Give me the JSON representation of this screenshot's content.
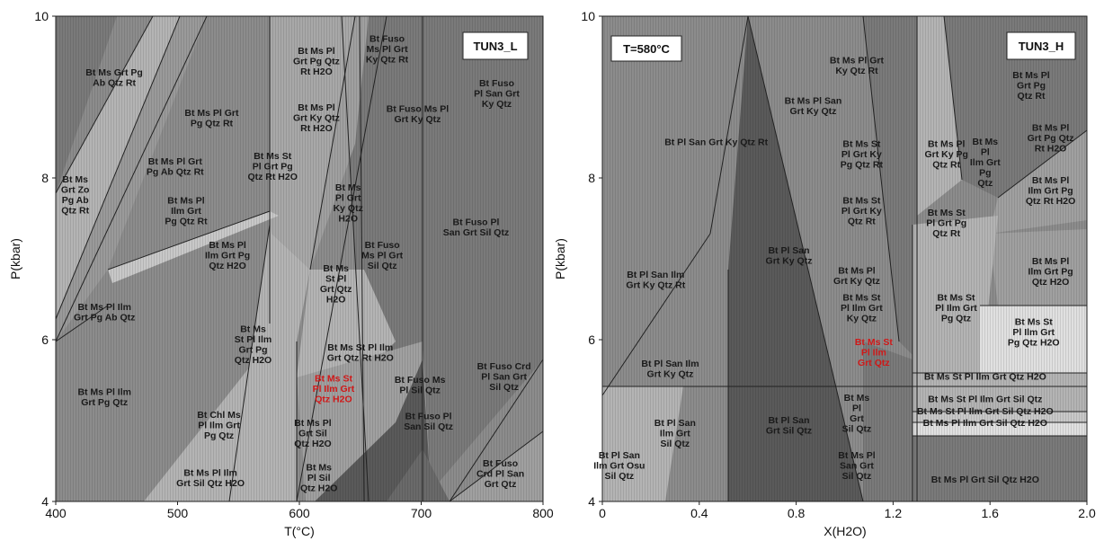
{
  "chart_data": [
    {
      "type": "phase-diagram",
      "title": "TUN3_L",
      "xlabel": "T(°C)",
      "ylabel": "P(kbar)",
      "xlim": [
        400,
        800
      ],
      "ylim": [
        4,
        10
      ],
      "xticks": [
        "400",
        "500",
        "600",
        "700",
        "800"
      ],
      "yticks": [
        "4",
        "6",
        "8",
        "10"
      ],
      "fields": [
        {
          "label": "Bt Ms Grt Pg\nAb Qtz Rt",
          "x": 448,
          "y": 9.25,
          "shade": "#7a7a7a"
        },
        {
          "label": "Bt Ms Pl Grt\nPg Qtz Rt",
          "x": 528,
          "y": 8.75,
          "shade": "#8c8c8c"
        },
        {
          "label": "Bt Ms Pl Grt\nPg Ab Qtz Rt",
          "x": 498,
          "y": 8.15,
          "shade": "#8c8c8c"
        },
        {
          "label": "Bt Ms\nGrt Zo\nPg Ab\nQtz Rt",
          "x": 416,
          "y": 7.8,
          "shade": "#b4b4b4"
        },
        {
          "label": "Bt Ms Pl\nIlm Grt\nPg Qtz Rt",
          "x": 507,
          "y": 7.6,
          "shade": "#8c8c8c"
        },
        {
          "label": "Bt Ms Pl\nGrt Pg Qtz\nRt H2O",
          "x": 614,
          "y": 9.45,
          "shade": "#a0a0a0"
        },
        {
          "label": "Bt Ms Pl\nGrt Ky Qtz\nRt H2O",
          "x": 614,
          "y": 8.75,
          "shade": "#a0a0a0"
        },
        {
          "label": "Bt Ms St\nPl Grt Pg\nQtz Rt H2O",
          "x": 578,
          "y": 8.15,
          "shade": "#b4b4b4"
        },
        {
          "label": "Bt Fuso\nMs Pl Grt\nKy Qtz Rt",
          "x": 672,
          "y": 9.6,
          "shade": "#7a7a7a"
        },
        {
          "label": "Bt Fuso Ms Pl\nGrt Ky Qtz",
          "x": 697,
          "y": 8.8,
          "shade": "#7a7a7a"
        },
        {
          "label": "Bt Fuso\nPl San Grt\nKy Qtz",
          "x": 762,
          "y": 9.05,
          "shade": "#7a7a7a"
        },
        {
          "label": "Bt Ms\nPl Grt\nKy Qtz\nH2O",
          "x": 640,
          "y": 7.7,
          "shade": "#8c8c8c"
        },
        {
          "label": "Bt Ms Pl\nIlm Grt Pg\nQtz H2O",
          "x": 541,
          "y": 7.05,
          "shade": "#8c8c8c"
        },
        {
          "label": "Bt Fuso\nMs Pl Grt\nSil Qtz",
          "x": 668,
          "y": 7.05,
          "shade": "#8c8c8c"
        },
        {
          "label": "Bt Fuso Pl\nSan Grt Sil Qtz",
          "x": 745,
          "y": 7.4,
          "shade": "#7a7a7a"
        },
        {
          "label": "Bt Ms\nSt Pl\nGrt Qtz\nH2O",
          "x": 630,
          "y": 6.7,
          "shade": "#a0a0a0"
        },
        {
          "label": "Bt Ms Pl Ilm\nGrt Pg Ab Qtz",
          "x": 440,
          "y": 6.35,
          "shade": "#8c8c8c"
        },
        {
          "label": "Bt Ms\nSt Pl Ilm\nGrt Pg\nQtz H2O",
          "x": 562,
          "y": 5.95,
          "shade": "#b4b4b4"
        },
        {
          "label": "Bt Ms St Pl Ilm\nGrt Qtz Rt H2O",
          "x": 650,
          "y": 5.85,
          "shade": "#b4b4b4"
        },
        {
          "label": "Bt Fuso Crd\nPl San Grt\nSil Qtz",
          "x": 768,
          "y": 5.55,
          "shade": "#7a7a7a"
        },
        {
          "label": "Bt Ms St\nPl Ilm Grt\nQtz H2O",
          "x": 628,
          "y": 5.4,
          "shade": "#b4b4b4",
          "highlight": true
        },
        {
          "label": "Bt Ms Pl Ilm\nGrt Pg Qtz",
          "x": 440,
          "y": 5.3,
          "shade": "#8c8c8c"
        },
        {
          "label": "Bt Fuso Ms\nPl Sil Qtz",
          "x": 699,
          "y": 5.45,
          "shade": "#7a7a7a"
        },
        {
          "label": "Bt Fuso Pl\nSan Sil Qtz",
          "x": 706,
          "y": 5.0,
          "shade": "#8c8c8c"
        },
        {
          "label": "Bt Chl Ms\nPl Ilm Grt\nPg Qtz",
          "x": 534,
          "y": 4.95,
          "shade": "#b4b4b4"
        },
        {
          "label": "Bt Ms Pl\nGrt Sil\nQtz H2O",
          "x": 611,
          "y": 4.85,
          "shade": "#a0a0a0"
        },
        {
          "label": "Bt Ms Pl Ilm\nGrt Sil Qtz H2O",
          "x": 527,
          "y": 4.3,
          "shade": "#8c8c8c"
        },
        {
          "label": "Bt Ms\nPl Sil\nQtz H2O",
          "x": 616,
          "y": 4.3,
          "shade": "#7a7a7a"
        },
        {
          "label": "Bt Fuso\nCrd Pl San\nGrt Qtz",
          "x": 765,
          "y": 4.35,
          "shade": "#8c8c8c"
        }
      ]
    },
    {
      "type": "phase-diagram",
      "title": "TUN3_H",
      "annotation": "T=580°C",
      "xlabel": "X(H2O)",
      "ylabel": "P(kbar)",
      "xlim": [
        0,
        2.0
      ],
      "ylim": [
        4,
        10
      ],
      "xticks": [
        "0",
        "0.4",
        "0.8",
        "1.2",
        "1.6",
        "2.0"
      ],
      "yticks": [
        "4",
        "6",
        "8",
        "10"
      ],
      "fields": [
        {
          "label": "Bt Ms Pl Grt\nKy Qtz Rt",
          "x": 1.05,
          "y": 9.4,
          "shade": "#7a7a7a"
        },
        {
          "label": "Bt Ms Pl San\nGrt Ky Qtz",
          "x": 0.87,
          "y": 8.9,
          "shade": "#7a7a7a"
        },
        {
          "label": "Bt Ms Pl\nGrt Pg\nQtz Rt",
          "x": 1.77,
          "y": 9.15,
          "shade": "#7a7a7a"
        },
        {
          "label": "Bt Pl San Grt Ky Qtz Rt",
          "x": 0.47,
          "y": 8.45,
          "shade": "#8c8c8c"
        },
        {
          "label": "Bt Ms St\nPl Grt Ky\nPg Qtz Rt",
          "x": 1.07,
          "y": 8.3,
          "shade": "#a0a0a0"
        },
        {
          "label": "Bt Ms Pl\nGrt Ky Pg\nQtz Rt",
          "x": 1.42,
          "y": 8.3,
          "shade": "#b4b4b4"
        },
        {
          "label": "Bt Ms\nPl\nIlm Grt\nPg\nQtz",
          "x": 1.58,
          "y": 8.2,
          "shade": "#8c8c8c"
        },
        {
          "label": "Bt Ms Pl\nGrt Pg Qtz\nRt H2O",
          "x": 1.85,
          "y": 8.5,
          "shade": "#a0a0a0"
        },
        {
          "label": "Bt Ms Pl\nIlm Grt Pg\nQtz Rt H2O",
          "x": 1.85,
          "y": 7.85,
          "shade": "#a0a0a0"
        },
        {
          "label": "Bt Ms St\nPl Grt Ky\nQtz Rt",
          "x": 1.07,
          "y": 7.6,
          "shade": "#a0a0a0"
        },
        {
          "label": "Bt Ms St\nPl Grt Pg\nQtz Rt",
          "x": 1.42,
          "y": 7.45,
          "shade": "#b4b4b4"
        },
        {
          "label": "Bt Pl San\nGrt Ky Qtz",
          "x": 0.77,
          "y": 7.05,
          "shade": "#5a5a5a"
        },
        {
          "label": "Bt Ms Pl\nGrt Ky Qtz",
          "x": 1.05,
          "y": 6.8,
          "shade": "#a0a0a0"
        },
        {
          "label": "Bt Ms Pl\nIlm Grt Pg\nQtz H2O",
          "x": 1.85,
          "y": 6.85,
          "shade": "#a0a0a0"
        },
        {
          "label": "Bt Pl San Ilm\nGrt Ky Qtz Rt",
          "x": 0.22,
          "y": 6.75,
          "shade": "#8c8c8c"
        },
        {
          "label": "Bt Ms St\nPl Ilm Grt\nKy Qtz",
          "x": 1.07,
          "y": 6.4,
          "shade": "#8c8c8c"
        },
        {
          "label": "Bt Ms St\nPl Ilm Grt\nPg Qtz",
          "x": 1.46,
          "y": 6.4,
          "shade": "#b4b4b4"
        },
        {
          "label": "Bt Ms St\nPl Ilm Grt\nPg Qtz H2O",
          "x": 1.78,
          "y": 6.1,
          "shade": "#e0e0e0"
        },
        {
          "label": "Bt Ms St\nPl Ilm\nGrt Qtz",
          "x": 1.12,
          "y": 5.85,
          "shade": "#8c8c8c",
          "highlight": true
        },
        {
          "label": "Bt Pl San Ilm\nGrt Ky Qtz",
          "x": 0.28,
          "y": 5.65,
          "shade": "#8c8c8c"
        },
        {
          "label": "Bt Ms St Pl Ilm Grt Qtz H2O",
          "x": 1.58,
          "y": 5.55,
          "shade": "#b4b4b4"
        },
        {
          "label": "Bt Ms\nPl\nGrt\nSil Qtz",
          "x": 1.05,
          "y": 5.1,
          "shade": "#8c8c8c"
        },
        {
          "label": "Bt Ms St Pl Ilm Grt Sil Qtz",
          "x": 1.58,
          "y": 5.27,
          "shade": "#b4b4b4"
        },
        {
          "label": "Bt Ms St Pl Ilm Grt Sil Qtz H2O",
          "x": 1.58,
          "y": 5.12,
          "shade": "#b4b4b4"
        },
        {
          "label": "Bt Ms Pl Ilm Grt Sil Qtz H2O",
          "x": 1.58,
          "y": 4.98,
          "shade": "#e0e0e0"
        },
        {
          "label": "Bt Pl San\nIlm Grt\nSil Qtz",
          "x": 0.3,
          "y": 4.85,
          "shade": "#7a7a7a"
        },
        {
          "label": "Bt Pl San\nGrt Sil Qtz",
          "x": 0.77,
          "y": 4.95,
          "shade": "#5a5a5a"
        },
        {
          "label": "Bt Pl San\nIlm Grt Osu\nSil Qtz",
          "x": 0.07,
          "y": 4.45,
          "shade": "#b4b4b4"
        },
        {
          "label": "Bt Ms Pl\nSan Grt\nSil Qtz",
          "x": 1.05,
          "y": 4.45,
          "shade": "#7a7a7a"
        },
        {
          "label": "Bt Ms Pl Grt Sil Qtz H2O",
          "x": 1.58,
          "y": 4.28,
          "shade": "#7a7a7a"
        }
      ]
    }
  ]
}
